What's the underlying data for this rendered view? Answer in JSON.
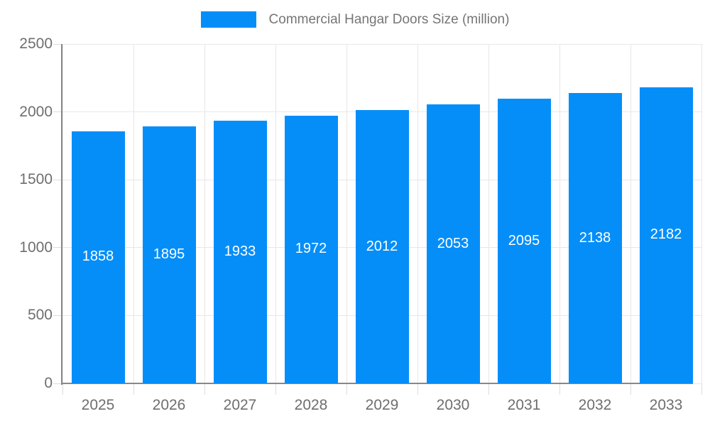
{
  "legend": {
    "label": "Commercial Hangar Doors Size (million)"
  },
  "chart_data": {
    "type": "bar",
    "title": "Commercial Hangar Doors Size (million)",
    "categories": [
      "2025",
      "2026",
      "2027",
      "2028",
      "2029",
      "2030",
      "2031",
      "2032",
      "2033"
    ],
    "values": [
      1858,
      1895,
      1933,
      1972,
      2012,
      2053,
      2095,
      2138,
      2182
    ],
    "value_labels": [
      "1858",
      "1895",
      "1933",
      "1972",
      "2012",
      "2053",
      "2095",
      "2138",
      "2182"
    ],
    "xlabel": "",
    "ylabel": "",
    "ylim": [
      0,
      2500
    ],
    "yticks": [
      0,
      500,
      1000,
      1500,
      2000,
      2500
    ],
    "ytick_labels": [
      "0",
      "500",
      "1000",
      "1500",
      "2000",
      "2500"
    ],
    "grid": true,
    "legend_position": "top",
    "colors": {
      "bar": "#058ef8",
      "grid": "#e7e7e7",
      "axis": "#888888",
      "tick": "#dddddd",
      "tick_label": "#6e6e6e",
      "value_label": "#ffffff",
      "legend_text": "#757575"
    }
  }
}
